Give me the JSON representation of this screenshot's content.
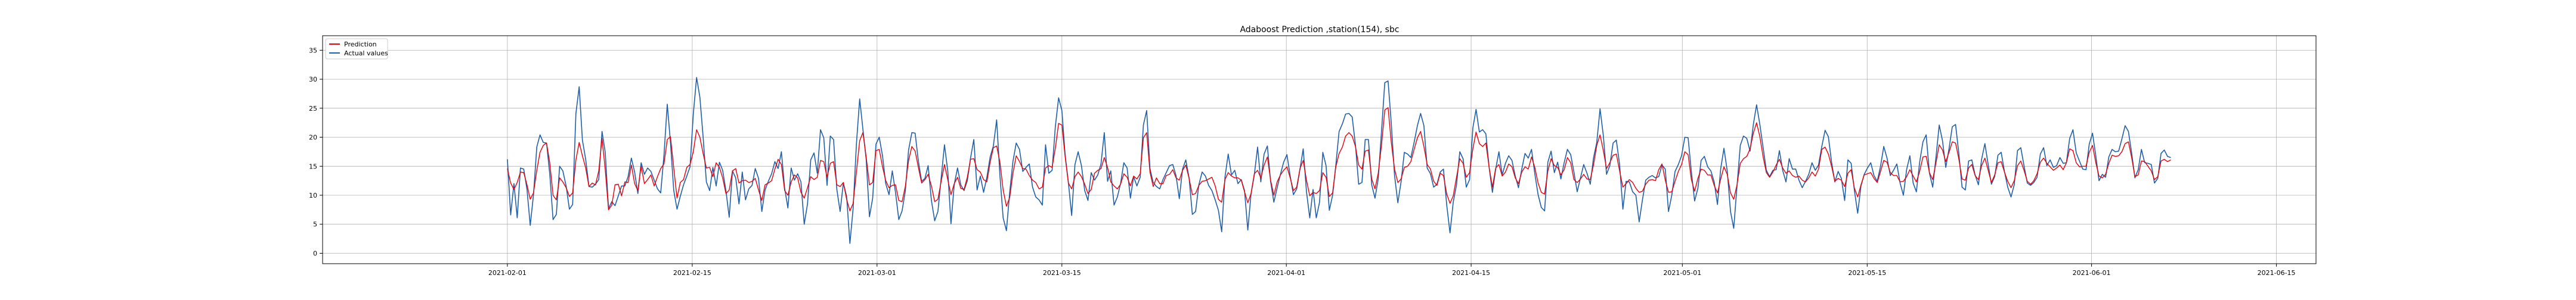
{
  "chart_data": {
    "type": "line",
    "title": "Adaboost Prediction ,station(154), sbc",
    "xlabel": "",
    "ylabel": "",
    "x_start": "2021-02-01T00:00:00",
    "x_end": "2021-06-07T00:00:00",
    "xlim": [
      "2021-01-18",
      "2021-06-18"
    ],
    "ylim": [
      -1.8,
      37.5
    ],
    "grid": true,
    "legend_position": "top-left",
    "x_tick_labels": [
      "2021-02-01",
      "2021-02-15",
      "2021-03-01",
      "2021-03-15",
      "2021-04-01",
      "2021-04-15",
      "2021-05-01",
      "2021-05-15",
      "2021-06-01",
      "2021-06-15"
    ],
    "y_ticks": [
      0,
      5,
      10,
      15,
      20,
      25,
      30,
      35
    ],
    "colors": {
      "prediction": "#e8000b",
      "actual": "#1f5fa8"
    },
    "series": [
      {
        "name": "Prediction",
        "values": [
          14.6,
          12.1,
          11.0,
          12.2,
          14.0,
          13.9,
          11.8,
          9.3,
          10.4,
          14.3,
          17.4,
          18.6,
          19.0,
          15.5,
          10.0,
          9.2,
          13.0,
          12.3,
          11.3,
          9.8,
          10.4,
          16.1,
          19.1,
          16.8,
          14.7,
          11.5,
          12.1,
          11.8,
          14.2,
          19.8,
          14.4,
          7.5,
          8.3,
          11.8,
          11.9,
          9.9,
          12.3,
          12.2,
          15.2,
          12.0,
          10.8,
          15.0,
          12.0,
          12.7,
          13.5,
          11.6,
          13.2,
          14.6,
          15.4,
          19.6,
          20.1,
          14.7,
          9.5,
          12.2,
          12.7,
          14.8,
          15.3,
          17.5,
          21.3,
          20.0,
          17.2,
          14.7,
          14.8,
          13.2,
          15.6,
          14.8,
          13.0,
          10.3,
          10.9,
          14.2,
          14.6,
          12.1,
          12.5,
          12.6,
          12.2,
          12.4,
          12.9,
          10.9,
          9.1,
          11.8,
          12.1,
          12.5,
          14.5,
          16.2,
          15.3,
          10.8,
          10.0,
          12.3,
          13.5,
          13.0,
          10.5,
          9.5,
          11.3,
          13.2,
          12.7,
          13.1,
          16.0,
          15.8,
          13.1,
          15.5,
          15.8,
          11.8,
          11.5,
          12.2,
          9.3,
          7.3,
          8.6,
          14.0,
          19.4,
          20.8,
          16.6,
          11.8,
          12.2,
          17.7,
          17.9,
          14.9,
          12.5,
          11.3,
          11.7,
          11.8,
          9.1,
          8.9,
          11.5,
          16.0,
          18.4,
          17.6,
          14.8,
          12.1,
          12.7,
          13.6,
          11.6,
          8.9,
          9.3,
          12.4,
          15.3,
          12.7,
          10.1,
          12.0,
          13.1,
          11.2,
          11.0,
          13.1,
          16.2,
          16.3,
          14.4,
          14.0,
          12.7,
          12.3,
          15.7,
          18.2,
          18.5,
          15.7,
          10.9,
          8.1,
          9.6,
          13.8,
          16.8,
          15.8,
          14.6,
          14.5,
          13.4,
          12.6,
          12.2,
          11.1,
          11.4,
          14.7,
          15.1,
          14.8,
          18.1,
          22.4,
          22.1,
          16.6,
          12.1,
          11.1,
          13.2,
          14.0,
          13.2,
          11.9,
          10.3,
          11.0,
          13.8,
          14.3,
          14.6,
          16.5,
          14.8,
          12.3,
          11.6,
          11.1,
          11.9,
          13.7,
          13.1,
          11.6,
          13.3,
          12.8,
          13.7,
          19.9,
          20.8,
          14.0,
          11.5,
          13.0,
          12.0,
          12.0,
          13.4,
          13.6,
          14.4,
          13.0,
          12.6,
          14.3,
          15.2,
          12.9,
          10.1,
          10.3,
          11.7,
          12.4,
          12.5,
          12.8,
          13.1,
          11.6,
          9.3,
          8.8,
          12.7,
          13.9,
          13.3,
          13.0,
          13.0,
          12.6,
          10.6,
          8.7,
          10.3,
          13.7,
          14.3,
          13.0,
          15.2,
          16.6,
          12.6,
          10.0,
          12.3,
          13.5,
          14.3,
          14.9,
          13.0,
          10.8,
          11.4,
          14.6,
          16.0,
          12.6,
          9.9,
          10.5,
          10.3,
          10.8,
          13.9,
          13.1,
          9.8,
          10.4,
          14.9,
          17.2,
          18.3,
          20.2,
          20.8,
          20.2,
          18.4,
          15.2,
          14.5,
          17.6,
          17.8,
          12.8,
          11.1,
          13.8,
          18.6,
          24.7,
          25.1,
          19.1,
          14.5,
          12.2,
          12.8,
          14.8,
          15.0,
          15.8,
          17.9,
          19.9,
          21.0,
          18.4,
          15.3,
          14.5,
          12.4,
          11.7,
          13.8,
          13.4,
          10.2,
          8.6,
          9.9,
          13.1,
          16.3,
          15.5,
          13.1,
          13.9,
          18.0,
          20.9,
          18.9,
          18.4,
          19.0,
          14.8,
          11.4,
          14.7,
          15.3,
          13.3,
          14.0,
          15.4,
          14.9,
          13.0,
          12.0,
          14.0,
          14.9,
          14.5,
          16.6,
          14.8,
          12.1,
          10.5,
          10.2,
          14.2,
          16.3,
          15.1,
          14.8,
          13.5,
          14.4,
          16.5,
          15.6,
          12.7,
          12.2,
          12.8,
          13.6,
          12.8,
          12.7,
          15.2,
          18.6,
          20.4,
          17.7,
          14.6,
          15.6,
          16.9,
          17.1,
          14.2,
          11.4,
          12.0,
          12.7,
          12.2,
          11.2,
          10.5,
          10.7,
          11.9,
          12.6,
          12.7,
          12.5,
          14.4,
          15.4,
          12.6,
          10.5,
          10.6,
          12.4,
          14.1,
          15.3,
          17.5,
          17.0,
          12.7,
          10.7,
          12.9,
          14.5,
          14.3,
          13.5,
          13.5,
          11.7,
          10.4,
          12.8,
          14.9,
          13.6,
          10.4,
          9.3,
          11.8,
          15.5,
          16.3,
          16.7,
          18.0,
          20.7,
          22.5,
          20.1,
          16.6,
          13.9,
          13.1,
          14.0,
          15.2,
          16.2,
          14.7,
          13.8,
          14.2,
          13.4,
          13.1,
          13.3,
          12.6,
          12.3,
          13.0,
          14.0,
          13.3,
          14.5,
          17.9,
          18.3,
          17.1,
          15.0,
          12.4,
          12.9,
          12.6,
          11.5,
          13.8,
          14.4,
          11.2,
          9.7,
          11.8,
          13.5,
          13.7,
          13.9,
          12.9,
          12.2,
          14.1,
          16.0,
          15.7,
          13.9,
          13.4,
          13.4,
          12.3,
          12.4,
          13.2,
          14.4,
          13.3,
          12.3,
          14.1,
          16.6,
          16.7,
          13.9,
          12.7,
          15.6,
          18.7,
          17.8,
          15.8,
          17.4,
          19.2,
          19.0,
          16.3,
          12.8,
          12.6,
          14.7,
          15.3,
          13.4,
          12.7,
          15.1,
          16.4,
          14.3,
          12.2,
          13.5,
          15.6,
          15.8,
          14.0,
          12.4,
          11.3,
          12.5,
          15.1,
          15.9,
          14.3,
          12.4,
          11.9,
          12.5,
          13.7,
          15.7,
          16.4,
          15.5,
          14.9,
          14.3,
          14.7,
          15.2,
          14.4,
          15.6,
          18.0,
          17.7,
          15.6,
          14.9,
          15.0,
          15.0,
          17.4,
          18.6,
          15.6,
          13.3,
          13.0,
          13.6,
          15.5,
          16.9,
          16.7,
          16.8,
          17.5,
          18.9,
          19.2,
          16.5,
          13.2,
          13.5,
          15.9,
          15.8,
          15.0,
          14.2,
          12.7,
          13.2,
          15.9,
          16.2,
          15.8,
          16.1
        ]
      },
      {
        "name": "Actual values",
        "values": [
          16.2,
          6.6,
          12.0,
          6.1,
          14.7,
          14.5,
          11.0,
          4.8,
          10.1,
          18.3,
          20.4,
          19.1,
          19.0,
          13.5,
          5.8,
          6.7,
          15.0,
          14.2,
          11.6,
          7.6,
          8.4,
          24.1,
          28.7,
          19.5,
          16.2,
          11.5,
          11.4,
          11.9,
          12.7,
          21.0,
          17.4,
          7.7,
          8.9,
          8.2,
          9.9,
          11.6,
          11.6,
          13.2,
          16.4,
          14.0,
          10.3,
          15.6,
          13.6,
          14.7,
          14.1,
          12.6,
          11.1,
          10.4,
          16.9,
          25.7,
          19.1,
          10.8,
          7.6,
          9.8,
          11.8,
          13.3,
          14.9,
          24.0,
          30.3,
          26.9,
          20.1,
          12.3,
          10.8,
          14.8,
          11.6,
          15.7,
          14.3,
          10.8,
          6.2,
          14.2,
          13.0,
          8.5,
          14.0,
          9.2,
          11.1,
          11.7,
          14.6,
          12.9,
          7.2,
          10.9,
          12.4,
          13.7,
          15.8,
          14.6,
          17.5,
          11.2,
          7.8,
          14.7,
          12.6,
          13.7,
          12.3,
          5.0,
          8.5,
          16.1,
          17.3,
          13.8,
          21.3,
          19.9,
          11.7,
          20.2,
          19.6,
          11.0,
          7.2,
          12.1,
          9.8,
          1.7,
          7.7,
          18.8,
          26.6,
          21.4,
          16.2,
          6.3,
          9.5,
          18.8,
          20.0,
          16.8,
          12.0,
          10.1,
          14.2,
          10.5,
          5.8,
          7.3,
          10.7,
          17.8,
          20.8,
          20.7,
          15.9,
          12.4,
          12.9,
          15.1,
          9.1,
          5.6,
          7.2,
          13.0,
          18.7,
          14.2,
          5.1,
          11.9,
          14.7,
          11.8,
          10.8,
          12.5,
          16.4,
          19.6,
          10.9,
          13.3,
          10.5,
          13.1,
          16.6,
          18.5,
          23.0,
          13.4,
          6.1,
          3.9,
          10.5,
          15.8,
          19.0,
          17.9,
          14.1,
          14.8,
          15.4,
          11.4,
          9.7,
          9.2,
          8.3,
          18.7,
          13.8,
          14.3,
          21.8,
          26.8,
          24.6,
          16.9,
          12.2,
          6.5,
          15.3,
          17.5,
          15.1,
          10.8,
          9.1,
          13.9,
          12.6,
          13.5,
          15.4,
          20.8,
          12.4,
          14.2,
          8.3,
          9.7,
          12.0,
          15.6,
          14.7,
          9.5,
          13.2,
          11.6,
          13.1,
          22.1,
          24.6,
          14.6,
          12.2,
          11.5,
          11.1,
          12.7,
          13.9,
          15.1,
          15.3,
          13.4,
          9.4,
          14.5,
          16.1,
          13.0,
          6.7,
          7.2,
          11.8,
          14.0,
          13.3,
          11.7,
          10.8,
          9.2,
          7.4,
          3.7,
          13.1,
          17.1,
          13.5,
          14.3,
          12.0,
          12.7,
          10.8,
          4.0,
          10.2,
          13.5,
          18.3,
          12.3,
          17.1,
          18.5,
          12.4,
          8.8,
          11.3,
          13.6,
          15.7,
          17.0,
          13.3,
          10.1,
          11.1,
          14.5,
          18.0,
          10.6,
          6.1,
          11.0,
          6.1,
          8.8,
          17.4,
          15.1,
          7.4,
          10.0,
          15.2,
          21.0,
          22.3,
          24.0,
          24.1,
          23.5,
          18.7,
          11.9,
          12.2,
          19.6,
          19.6,
          11.8,
          9.5,
          12.8,
          21.0,
          29.4,
          29.7,
          22.4,
          13.4,
          8.7,
          12.3,
          17.4,
          17.1,
          16.5,
          19.1,
          22.0,
          24.1,
          22.0,
          14.7,
          13.7,
          11.4,
          11.9,
          14.0,
          14.5,
          8.3,
          3.5,
          8.8,
          11.8,
          17.5,
          16.3,
          11.4,
          12.7,
          21.6,
          24.8,
          20.9,
          21.3,
          20.6,
          14.8,
          10.5,
          14.5,
          17.5,
          13.5,
          15.5,
          16.8,
          16.0,
          13.3,
          11.3,
          14.5,
          17.2,
          16.4,
          17.9,
          13.7,
          10.1,
          7.9,
          7.3,
          15.7,
          17.6,
          13.9,
          15.7,
          12.8,
          15.6,
          17.9,
          17.0,
          14.0,
          10.6,
          13.0,
          15.3,
          13.8,
          11.9,
          16.4,
          19.1,
          24.9,
          20.3,
          13.6,
          15.1,
          19.0,
          19.5,
          15.3,
          7.6,
          12.4,
          12.3,
          10.6,
          10.0,
          5.4,
          9.2,
          12.6,
          13.1,
          13.4,
          13.0,
          13.2,
          15.2,
          14.5,
          7.2,
          10.0,
          14.1,
          15.3,
          16.8,
          20.0,
          19.9,
          14.1,
          9.0,
          11.2,
          16.0,
          16.7,
          14.9,
          14.2,
          12.3,
          8.4,
          14.6,
          18.1,
          14.2,
          7.2,
          4.3,
          11.6,
          18.6,
          20.2,
          19.8,
          17.6,
          22.2,
          25.6,
          22.2,
          18.2,
          14.3,
          13.2,
          14.3,
          14.4,
          17.7,
          14.3,
          12.3,
          16.3,
          14.5,
          14.5,
          12.6,
          11.3,
          12.4,
          13.6,
          15.6,
          14.3,
          15.2,
          18.4,
          21.2,
          20.1,
          15.7,
          12.3,
          14.1,
          12.9,
          9.1,
          16.1,
          15.5,
          10.8,
          6.9,
          11.6,
          13.6,
          14.7,
          15.6,
          13.4,
          12.4,
          15.0,
          18.4,
          16.4,
          13.4,
          14.3,
          15.4,
          12.1,
          10.0,
          14.4,
          16.8,
          12.1,
          10.6,
          15.7,
          19.2,
          20.4,
          13.8,
          11.4,
          16.6,
          22.1,
          19.4,
          14.8,
          18.0,
          21.8,
          22.2,
          17.3,
          11.4,
          10.9,
          15.9,
          16.1,
          13.5,
          11.8,
          16.2,
          18.9,
          15.3,
          11.9,
          13.2,
          16.9,
          17.4,
          14.1,
          11.4,
          9.7,
          11.8,
          17.7,
          18.2,
          15.1,
          12.1,
          11.7,
          12.2,
          13.1,
          17.1,
          18.2,
          15.1,
          16.1,
          14.8,
          15.1,
          16.5,
          15.5,
          15.6,
          19.8,
          21.3,
          17.3,
          15.9,
          14.5,
          14.4,
          18.8,
          20.7,
          16.8,
          12.5,
          13.6,
          13.1,
          16.6,
          17.9,
          17.5,
          17.6,
          19.7,
          22.0,
          21.0,
          17.3,
          13.0,
          14.4,
          17.9,
          15.6,
          15.5,
          15.3,
          12.1,
          12.9,
          17.2,
          17.8,
          16.7,
          16.5
        ]
      }
    ]
  }
}
